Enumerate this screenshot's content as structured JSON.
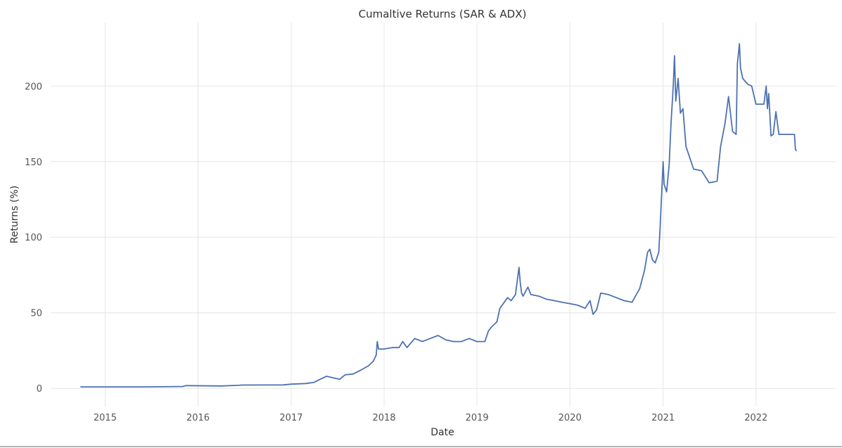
{
  "chart_data": {
    "type": "line",
    "title": "Cumaltive Returns (SAR & ADX)",
    "xlabel": "Date",
    "ylabel": "Returns (%)",
    "x_ticks": [
      "2015",
      "2016",
      "2017",
      "2018",
      "2019",
      "2020",
      "2021",
      "2022"
    ],
    "y_ticks": [
      "0",
      "50",
      "100",
      "150",
      "200"
    ],
    "xlim": [
      "2014-06-01",
      "2022-11-10"
    ],
    "ylim": [
      -12,
      242
    ],
    "grid": true,
    "colors": {
      "line": "#4c72b0",
      "grid": "#e6e6e6",
      "text": "#333333",
      "tick": "#555555"
    },
    "series": [
      {
        "x": [
          "2014-09-26",
          "2015-06-01",
          "2015-11-01",
          "2015-11-15",
          "2016-04-01",
          "2016-06-10",
          "2016-06-20",
          "2016-12-01",
          "2017-01-01",
          "2017-03-01",
          "2017-04-01",
          "2017-05-01",
          "2017-05-20",
          "2017-06-15",
          "2017-07-10",
          "2017-08-01",
          "2017-09-01",
          "2017-10-01",
          "2017-11-01",
          "2017-11-20",
          "2017-12-01",
          "2017-12-05",
          "2017-12-10",
          "2018-01-01",
          "2018-02-01",
          "2018-03-01",
          "2018-03-15",
          "2018-04-01",
          "2018-05-01",
          "2018-06-01",
          "2018-07-01",
          "2018-08-01",
          "2018-09-01",
          "2018-10-01",
          "2018-11-01",
          "2018-12-01",
          "2019-01-01",
          "2019-02-01",
          "2019-02-15",
          "2019-03-01",
          "2019-03-20",
          "2019-04-01",
          "2019-05-01",
          "2019-05-15",
          "2019-06-01",
          "2019-06-15",
          "2019-06-20",
          "2019-06-25",
          "2019-07-01",
          "2019-07-20",
          "2019-08-01",
          "2019-09-01",
          "2019-10-01",
          "2019-11-01",
          "2019-12-01",
          "2020-01-01",
          "2020-02-01",
          "2020-03-01",
          "2020-03-20",
          "2020-04-01",
          "2020-04-15",
          "2020-05-01",
          "2020-06-01",
          "2020-07-01",
          "2020-08-01",
          "2020-09-01",
          "2020-10-01",
          "2020-10-20",
          "2020-11-01",
          "2020-11-10",
          "2020-11-20",
          "2020-12-01",
          "2020-12-15",
          "2020-12-20",
          "2021-01-01",
          "2021-01-05",
          "2021-01-15",
          "2021-01-25",
          "2021-02-01",
          "2021-02-10",
          "2021-02-15",
          "2021-02-20",
          "2021-03-01",
          "2021-03-10",
          "2021-03-20",
          "2021-04-01",
          "2021-05-01",
          "2021-06-01",
          "2021-07-01",
          "2021-08-01",
          "2021-08-15",
          "2021-09-01",
          "2021-09-15",
          "2021-10-01",
          "2021-10-15",
          "2021-10-20",
          "2021-10-28",
          "2021-11-01",
          "2021-11-10",
          "2021-11-20",
          "2021-12-01",
          "2021-12-15",
          "2022-01-01",
          "2022-02-01",
          "2022-02-10",
          "2022-02-15",
          "2022-02-20",
          "2022-03-01",
          "2022-03-10",
          "2022-03-20",
          "2022-04-01",
          "2022-05-01",
          "2022-06-01",
          "2022-06-05",
          "2022-06-10"
        ],
        "y": [
          1.0,
          1.0,
          1.2,
          1.8,
          1.6,
          2.0,
          2.2,
          2.3,
          2.8,
          3.2,
          4.0,
          6.5,
          8.0,
          7.0,
          6.0,
          9.0,
          9.5,
          12.0,
          15.0,
          18.0,
          22.0,
          31.0,
          26.0,
          26.0,
          27.0,
          27.0,
          31.0,
          27.0,
          33.0,
          31.0,
          33.0,
          35.0,
          32.0,
          31.0,
          31.0,
          33.0,
          31.0,
          31.0,
          38.0,
          41.0,
          44.0,
          53.0,
          60.0,
          58.0,
          62.0,
          80.0,
          70.0,
          63.0,
          61.0,
          67.0,
          62.0,
          61.0,
          59.0,
          58.0,
          57.0,
          56.0,
          55.0,
          53.0,
          58.0,
          49.0,
          52.0,
          63.0,
          62.0,
          60.0,
          58.0,
          57.0,
          66.0,
          78.0,
          90.0,
          92.0,
          85.0,
          83.0,
          90.0,
          105.0,
          150.0,
          135.0,
          130.0,
          148.0,
          175.0,
          200.0,
          220.0,
          190.0,
          205.0,
          182.0,
          185.0,
          160.0,
          145.0,
          144.0,
          136.0,
          137.0,
          160.0,
          175.0,
          193.0,
          170.0,
          168.0,
          215.0,
          228.0,
          212.0,
          205.0,
          203.0,
          201.0,
          200.0,
          188.0,
          188.0,
          200.0,
          185.0,
          195.0,
          167.0,
          168.0,
          183.0,
          168.0,
          168.0,
          168.0,
          158.0,
          157.0
        ]
      }
    ]
  }
}
